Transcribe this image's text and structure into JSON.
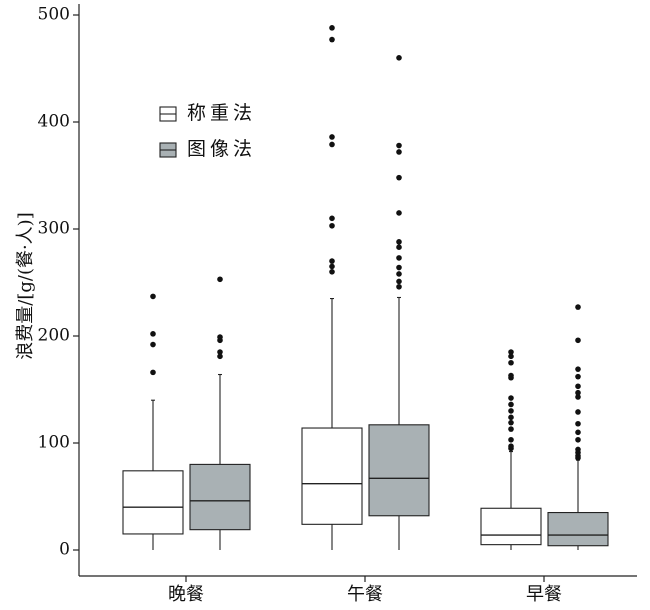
{
  "chart_data": {
    "type": "boxplot",
    "ylabel": "浪费量/[g/(餐·人)]",
    "ylim": [
      0,
      500
    ],
    "yticks": [
      0,
      100,
      200,
      300,
      400,
      500
    ],
    "categories": [
      "晚餐",
      "午餐",
      "早餐"
    ],
    "legend_position": "top-left",
    "grid": false,
    "series": [
      {
        "name": "称重法",
        "color": "#ffffff",
        "boxes": [
          {
            "category": "晚餐",
            "whisker_low": 0,
            "q1": 15,
            "median": 40,
            "q3": 74,
            "whisker_high": 140,
            "outliers": [
              166,
              192,
              202,
              237
            ]
          },
          {
            "category": "午餐",
            "whisker_low": 0,
            "q1": 24,
            "median": 62,
            "q3": 114,
            "whisker_high": 235,
            "outliers": [
              260,
              265,
              270,
              303,
              310,
              379,
              386,
              477,
              488
            ]
          },
          {
            "category": "早餐",
            "whisker_low": 0,
            "q1": 5,
            "median": 14,
            "q3": 39,
            "whisker_high": 92,
            "outliers": [
              95,
              97,
              103,
              113,
              119,
              124,
              130,
              136,
              142,
              161,
              163,
              175,
              181,
              185
            ]
          }
        ]
      },
      {
        "name": "图像法",
        "color": "#a9b1b4",
        "boxes": [
          {
            "category": "晚餐",
            "whisker_low": 0,
            "q1": 19,
            "median": 46,
            "q3": 80,
            "whisker_high": 164,
            "outliers": [
              181,
              185,
              196,
              199,
              253
            ]
          },
          {
            "category": "午餐",
            "whisker_low": 0,
            "q1": 32,
            "median": 67,
            "q3": 117,
            "whisker_high": 236,
            "outliers": [
              246,
              251,
              258,
              264,
              273,
              283,
              288,
              315,
              348,
              372,
              378,
              460
            ]
          },
          {
            "category": "早餐",
            "whisker_low": 0,
            "q1": 4,
            "median": 14,
            "q3": 35,
            "whisker_high": 84,
            "outliers": [
              86,
              88,
              91,
              94,
              103,
              110,
              118,
              129,
              143,
              147,
              153,
              162,
              169,
              196,
              227
            ]
          }
        ]
      }
    ]
  }
}
